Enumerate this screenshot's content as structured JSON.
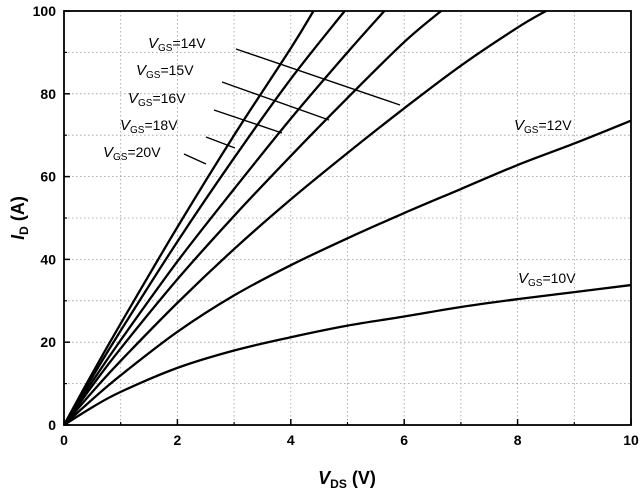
{
  "chart_data": {
    "type": "line",
    "x_axis": {
      "range": [
        0,
        10
      ],
      "ticks": [
        "0",
        "2",
        "4",
        "6",
        "8",
        "10"
      ],
      "title_var": "V",
      "title_sub": "DS",
      "title_unit": " (V)"
    },
    "y_axis": {
      "range": [
        0,
        100
      ],
      "ticks": [
        "0",
        "20",
        "40",
        "60",
        "80",
        "100"
      ],
      "title_var": "I",
      "title_sub": "D",
      "title_unit": " (A)"
    },
    "grid": true,
    "series": [
      {
        "label_var": "V",
        "label_sub": "GS",
        "label_val": "=10V",
        "points": [
          [
            0,
            0
          ],
          [
            0.5,
            4.3
          ],
          [
            1,
            8
          ],
          [
            2,
            13.8
          ],
          [
            3,
            18
          ],
          [
            4,
            21.2
          ],
          [
            5,
            24
          ],
          [
            6,
            26.2
          ],
          [
            7,
            28.5
          ],
          [
            8,
            30.4
          ],
          [
            9,
            32.1
          ],
          [
            10,
            33.8
          ]
        ]
      },
      {
        "label_var": "V",
        "label_sub": "GS",
        "label_val": "=12V",
        "points": [
          [
            0,
            0
          ],
          [
            0.5,
            6.2
          ],
          [
            1,
            12
          ],
          [
            2,
            22.5
          ],
          [
            3,
            31.3
          ],
          [
            4,
            38.6
          ],
          [
            5,
            45.1
          ],
          [
            6,
            51.2
          ],
          [
            7,
            57
          ],
          [
            8,
            62.8
          ],
          [
            9,
            68
          ],
          [
            10,
            73.5
          ]
        ]
      },
      {
        "label_var": "V",
        "label_sub": "GS",
        "label_val": "=14V",
        "points": [
          [
            0,
            0
          ],
          [
            0.5,
            8
          ],
          [
            1,
            15.5
          ],
          [
            2,
            29.5
          ],
          [
            3,
            42.5
          ],
          [
            4,
            54.5
          ],
          [
            5,
            65.7
          ],
          [
            6,
            76.5
          ],
          [
            7,
            86.8
          ],
          [
            8,
            96
          ],
          [
            8.5,
            100
          ]
        ]
      },
      {
        "label_var": "V",
        "label_sub": "GS",
        "label_val": "=15V",
        "points": [
          [
            0,
            0
          ],
          [
            0.5,
            9.5
          ],
          [
            1,
            18.5
          ],
          [
            2,
            35.2
          ],
          [
            3,
            50.5
          ],
          [
            4,
            65
          ],
          [
            5,
            79
          ],
          [
            6,
            92.5
          ],
          [
            6.65,
            100
          ]
        ]
      },
      {
        "label_var": "V",
        "label_sub": "GS",
        "label_val": "=16V",
        "points": [
          [
            0,
            0
          ],
          [
            0.5,
            10.5
          ],
          [
            1,
            20.5
          ],
          [
            2,
            39.5
          ],
          [
            3,
            57
          ],
          [
            4,
            74
          ],
          [
            5,
            90
          ],
          [
            5.65,
            100
          ]
        ]
      },
      {
        "label_var": "V",
        "label_sub": "GS",
        "label_val": "=18V",
        "points": [
          [
            0,
            0
          ],
          [
            0.5,
            11.6
          ],
          [
            1,
            22.8
          ],
          [
            2,
            44.3
          ],
          [
            3,
            64.5
          ],
          [
            4,
            83.6
          ],
          [
            4.95,
            100
          ]
        ]
      },
      {
        "label_var": "V",
        "label_sub": "GS",
        "label_val": "=20V",
        "points": [
          [
            0,
            0
          ],
          [
            0.5,
            12.5
          ],
          [
            1,
            24.5
          ],
          [
            2,
            47.8
          ],
          [
            3,
            70
          ],
          [
            4,
            91
          ],
          [
            4.4,
            100
          ]
        ]
      }
    ]
  }
}
